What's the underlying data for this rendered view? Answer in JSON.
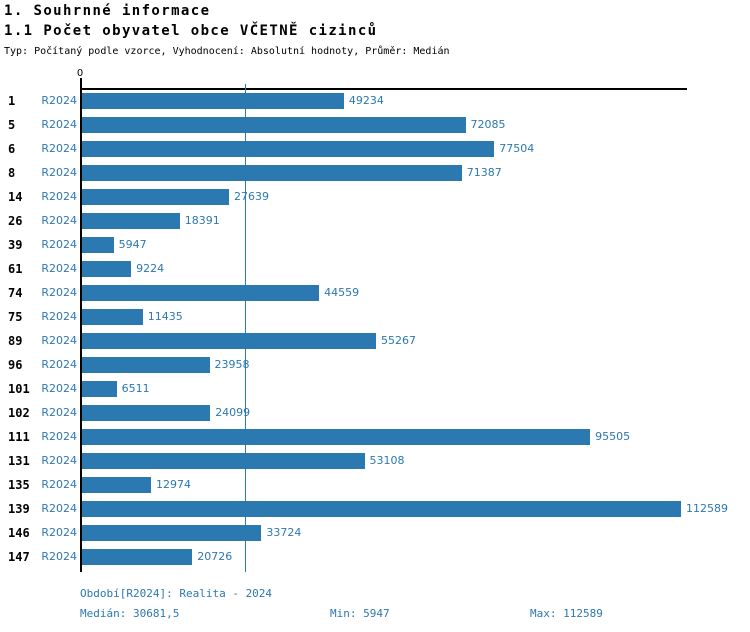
{
  "header": {
    "section_title": "1. Souhrnné informace",
    "indicator_title": "1.1 Počet obyvatel obce VČETNĚ cizinců",
    "meta_line": "Typ: Počítaný podle vzorce, Vyhodnocení: Absolutní hodnoty, Průměr: Medián"
  },
  "chart_data": {
    "type": "bar",
    "orientation": "horizontal",
    "title": "1.1 Počet obyvatel obce VČETNĚ cizinců",
    "categories": [
      "1",
      "5",
      "6",
      "8",
      "14",
      "26",
      "39",
      "61",
      "74",
      "75",
      "89",
      "96",
      "101",
      "102",
      "111",
      "131",
      "135",
      "139",
      "146",
      "147"
    ],
    "series_label": "R2024",
    "values": [
      49234,
      72085,
      77504,
      71387,
      27639,
      18391,
      5947,
      9224,
      44559,
      11435,
      55267,
      23958,
      6511,
      24099,
      95505,
      53108,
      12974,
      112589,
      33724,
      20726
    ],
    "axis_zero_label": "0",
    "xlim": [
      0,
      113700
    ],
    "median_value": 30681.5,
    "min_value": 5947,
    "max_value": 112589,
    "grid": "single median gridline",
    "legend": "none",
    "bar_color": "#2c78b1",
    "text_color": "#2c78b1"
  },
  "footer": {
    "period": "Období[R2024]: Realita - 2024",
    "median": "Medián: 30681,5",
    "min": "Min: 5947",
    "max": "Max: 112589"
  }
}
